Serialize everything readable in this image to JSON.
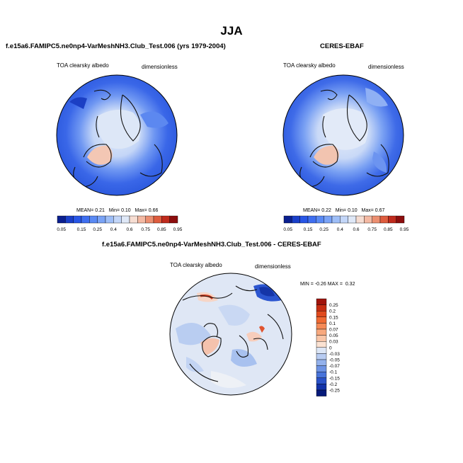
{
  "main_title": "JJA",
  "panels": [
    {
      "title": "f.e15a6.FAMIPC5.ne0np4-VarMeshNH3.Club_Test.006 (yrs 1979-2004)",
      "var_label": "TOA clearsky albedo",
      "units": "dimensionless",
      "stats": {
        "mean_label": "MEAN=",
        "mean": "0.21",
        "min_label": "Min=",
        "min": "0.10",
        "max_label": "Max=",
        "max": "0.66"
      }
    },
    {
      "title": "CERES-EBAF",
      "var_label": "TOA clearsky albedo",
      "units": "dimensionless",
      "stats": {
        "mean_label": "MEAN=",
        "mean": "0.22",
        "min_label": "Min=",
        "min": "0.10",
        "max_label": "Max=",
        "max": "0.67"
      }
    }
  ],
  "diff_panel": {
    "title": "f.e15a6.FAMIPC5.ne0np4-VarMeshNH3.Club_Test.006 - CERES-EBAF",
    "var_label": "TOA clearsky albedo",
    "units": "dimensionless",
    "stats": {
      "min_label": "MIN =",
      "min": "-0.26",
      "max_label": "MAX =",
      "max": "0.32"
    }
  },
  "colorbar_abs": {
    "labels": [
      "0.05",
      "0.15",
      "0.25",
      "0.4",
      "0.6",
      "0.75",
      "0.85",
      "0.95"
    ],
    "colors": [
      "#0a1f8f",
      "#1a3fc9",
      "#2856e6",
      "#3f6ff0",
      "#5a8af4",
      "#7aa3f6",
      "#9ebef7",
      "#c3d6f8",
      "#dfe8f7",
      "#f6ddd2",
      "#f4b9a3",
      "#ec8f71",
      "#de5c3e",
      "#c02b1d",
      "#8c0d0d"
    ]
  },
  "colorbar_diff": {
    "labels": [
      "0.25",
      "0.2",
      "0.15",
      "0.1",
      "0.07",
      "0.05",
      "0.03",
      "0",
      "-0.03",
      "-0.05",
      "-0.07",
      "-0.1",
      "-0.15",
      "-0.2",
      "-0.25"
    ],
    "colors": [
      "#a0140c",
      "#c62d12",
      "#e04a1d",
      "#f06a33",
      "#f58a57",
      "#f8a97e",
      "#f9c6a8",
      "#fbe2d2",
      "#dce6f6",
      "#b8ccf2",
      "#93b1ec",
      "#6d93e4",
      "#4874da",
      "#2a52c8",
      "#1232a8",
      "#061a7a"
    ]
  }
}
